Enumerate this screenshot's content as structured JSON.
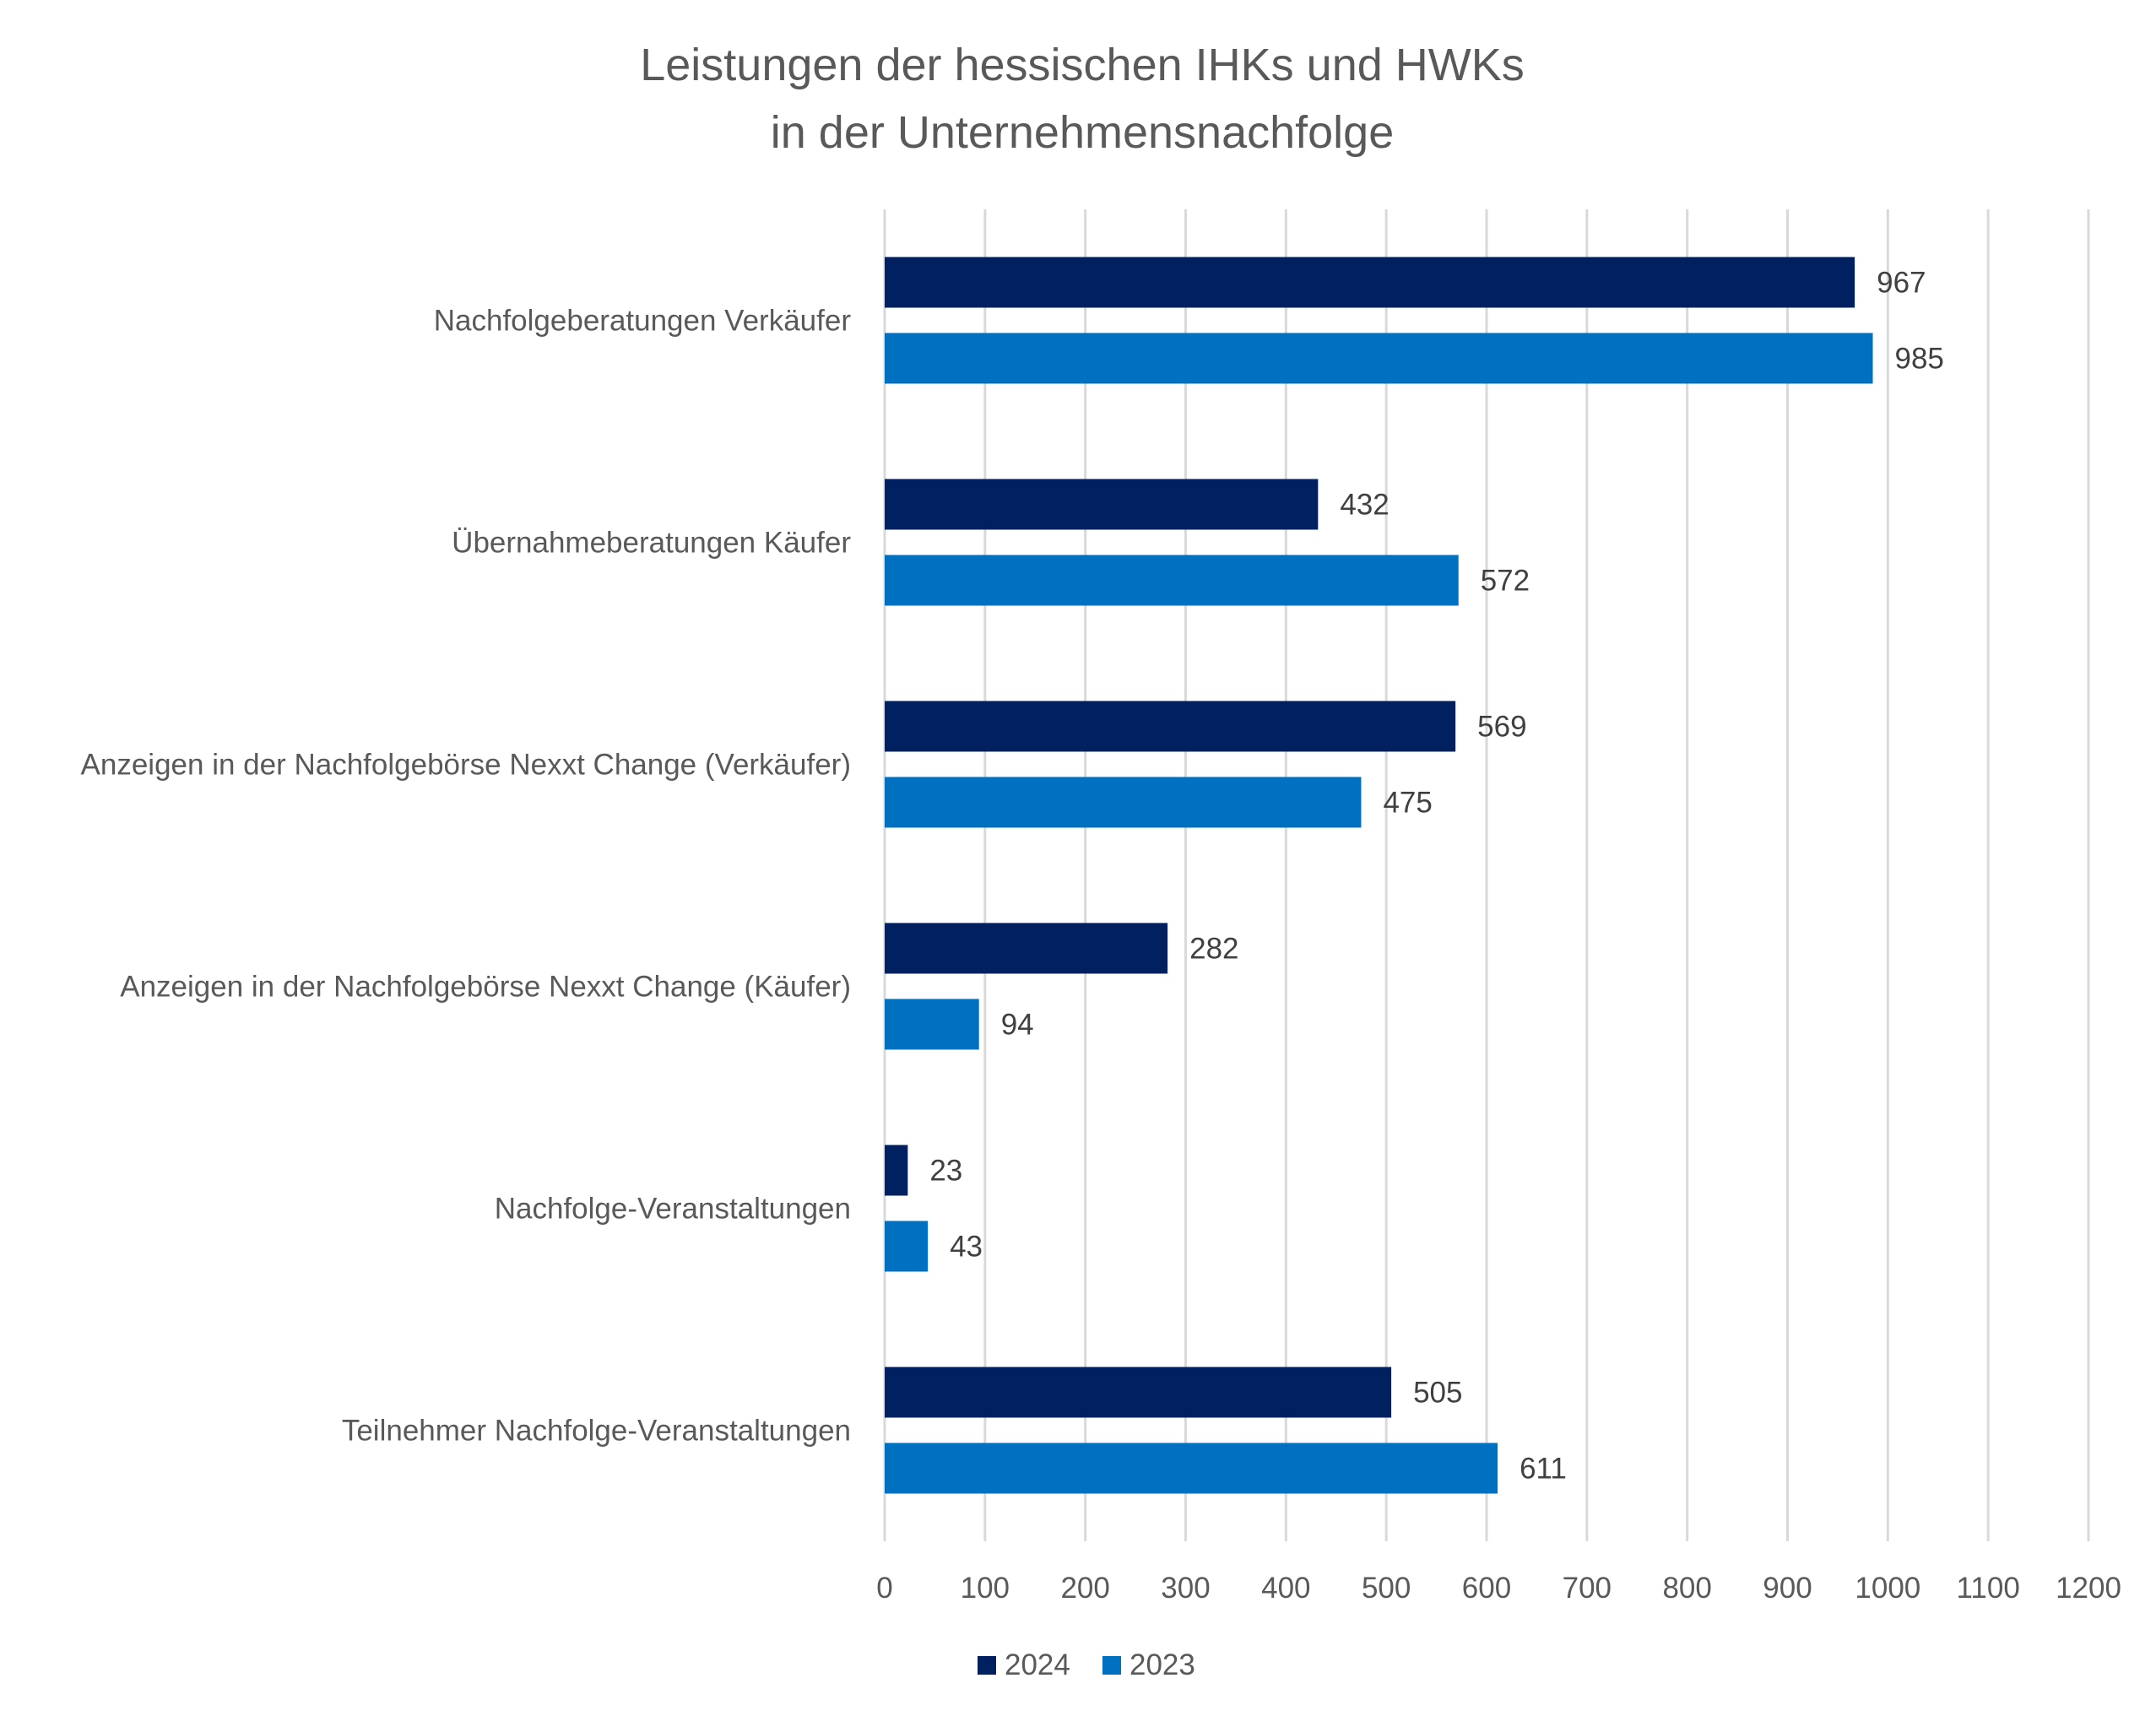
{
  "chart_data": {
    "type": "bar",
    "orientation": "horizontal",
    "title": "Leistungen der hessischen IHKs und HWKs",
    "subtitle": "in der Unternehmensnachfolge",
    "categories": [
      "Nachfolgeberatungen Verkäufer",
      "Übernahmeberatungen Käufer",
      "Anzeigen in der Nachfolgebörse Nexxt Change (Verkäufer)",
      "Anzeigen in der Nachfolgebörse Nexxt Change (Käufer)",
      "Nachfolge-Veranstaltungen",
      "Teilnehmer Nachfolge-Veranstaltungen"
    ],
    "series": [
      {
        "name": "2024",
        "color": "#002060",
        "values": [
          967,
          432,
          569,
          282,
          23,
          505
        ]
      },
      {
        "name": "2023",
        "color": "#0070C0",
        "values": [
          985,
          572,
          475,
          94,
          43,
          611
        ]
      }
    ],
    "xlim": [
      0,
      1200
    ],
    "xticks": [
      "0",
      "100",
      "200",
      "300",
      "400",
      "500",
      "600",
      "700",
      "800",
      "900",
      "1000",
      "1100",
      "1200"
    ],
    "grid": "vertical",
    "legend": "bottom"
  }
}
